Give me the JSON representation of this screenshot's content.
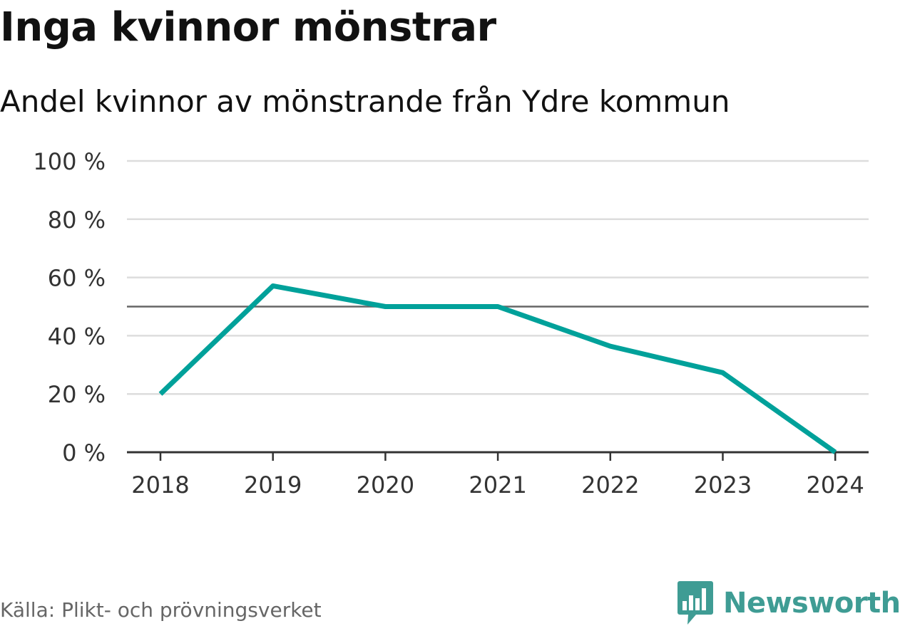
{
  "chart_data": {
    "type": "line",
    "title": "Inga kvinnor mönstrar",
    "subtitle": "Andel kvinnor av mönstrande från Ydre kommun",
    "categories": [
      "2018",
      "2019",
      "2020",
      "2021",
      "2022",
      "2023",
      "2024"
    ],
    "series": [
      {
        "values": [
          20,
          57.1,
          50,
          50,
          36.4,
          27.3,
          0
        ],
        "color": "#00a19a"
      }
    ],
    "ylim": [
      0,
      100
    ],
    "yticks": [
      0,
      20,
      40,
      60,
      80,
      100
    ],
    "ytick_labels": [
      "0 %",
      "20 %",
      "40 %",
      "60 %",
      "80 %",
      "100 %"
    ],
    "reference_line": 50,
    "grid": true,
    "legend": "none"
  },
  "source": "Källa: Plikt- och prövningsverket",
  "brand": {
    "name": "Newsworthy",
    "icon": "bar-chart-speech-bubble-icon",
    "color": "#3f9c94"
  },
  "colors": {
    "line": "#00a19a",
    "grid": "#dddddd",
    "reference": "#666666",
    "axis": "#333333",
    "text": "#111111",
    "muted": "#666666"
  }
}
